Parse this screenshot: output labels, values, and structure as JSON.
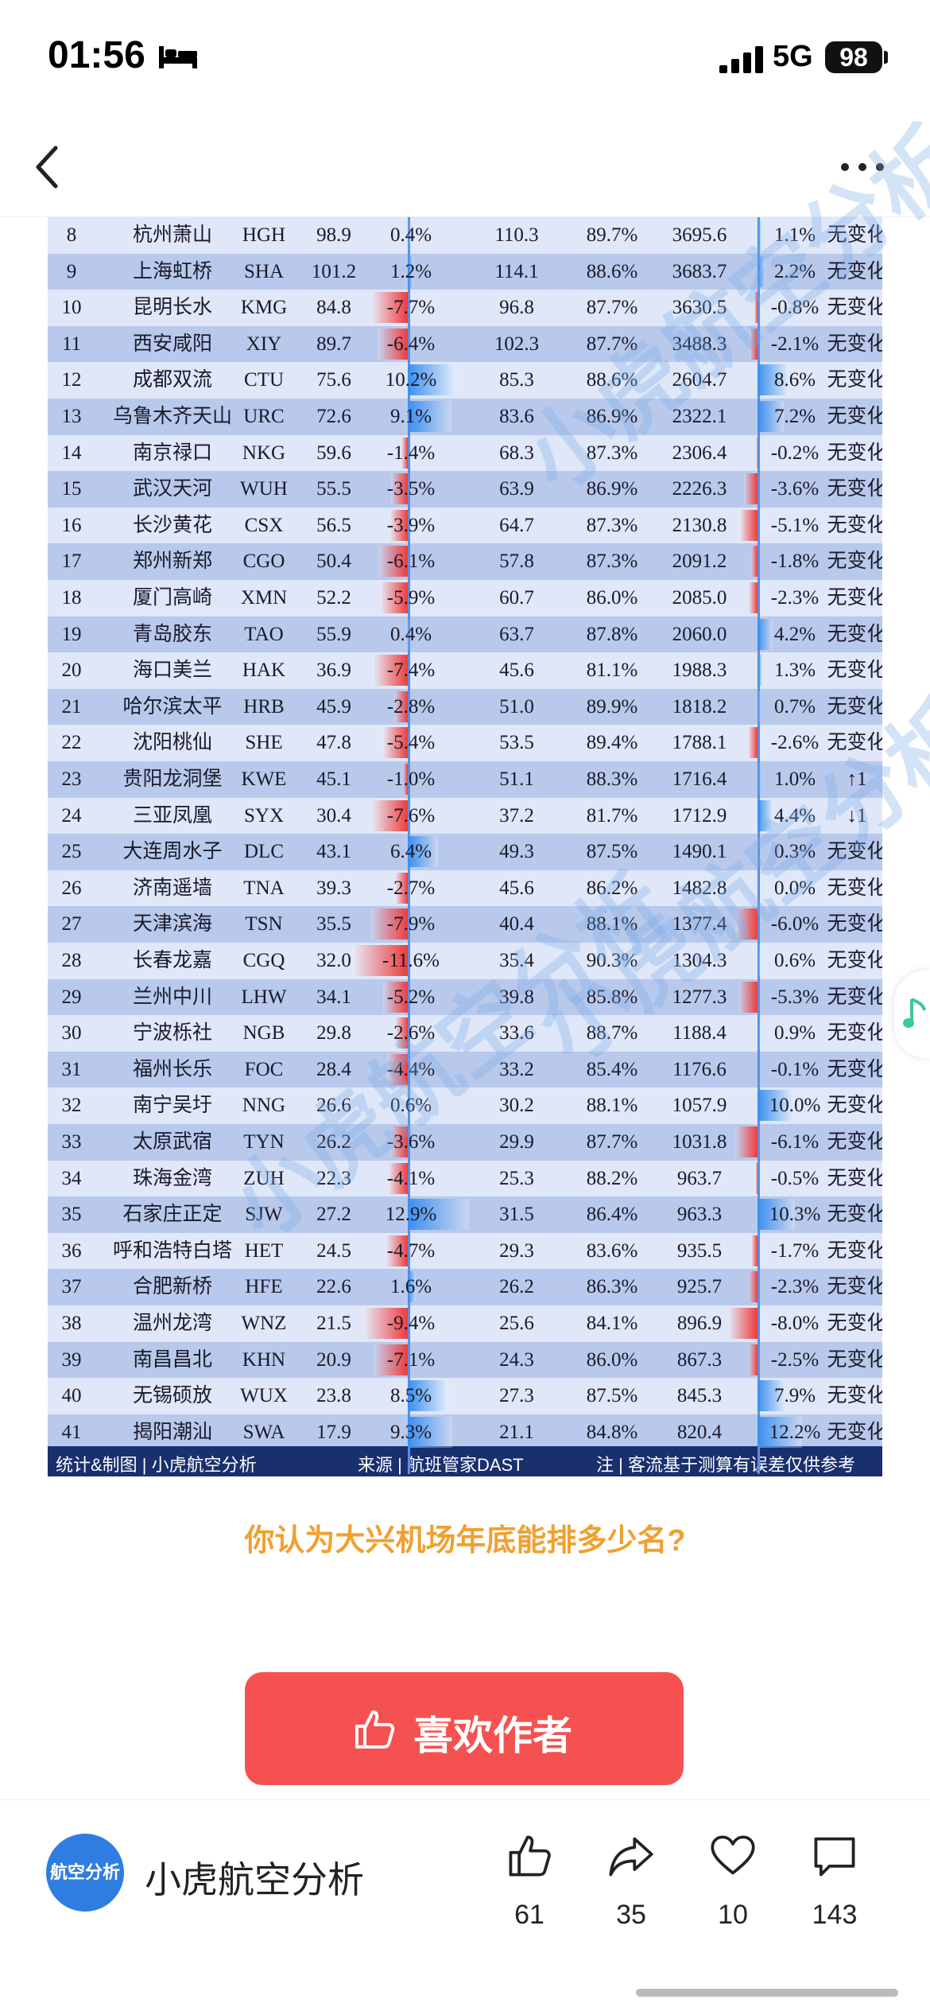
{
  "status_bar": {
    "time": "01:56",
    "network": "5G",
    "battery": "98"
  },
  "nav": {
    "back_icon": "chevron-left-icon",
    "more_icon": "more-horizontal-icon"
  },
  "table": {
    "rows": [
      {
        "rank": "8",
        "name": "杭州萧山",
        "code": "HGH",
        "pax": "98.9",
        "growth1": "0.4%",
        "seat": "110.3",
        "load": "89.7%",
        "flights": "3695.6",
        "growth2": "1.1%",
        "change": "无变化"
      },
      {
        "rank": "9",
        "name": "上海虹桥",
        "code": "SHA",
        "pax": "101.2",
        "growth1": "1.2%",
        "seat": "114.1",
        "load": "88.6%",
        "flights": "3683.7",
        "growth2": "2.2%",
        "change": "无变化"
      },
      {
        "rank": "10",
        "name": "昆明长水",
        "code": "KMG",
        "pax": "84.8",
        "growth1": "-7.7%",
        "seat": "96.8",
        "load": "87.7%",
        "flights": "3630.5",
        "growth2": "-0.8%",
        "change": "无变化"
      },
      {
        "rank": "11",
        "name": "西安咸阳",
        "code": "XIY",
        "pax": "89.7",
        "growth1": "-6.4%",
        "seat": "102.3",
        "load": "87.7%",
        "flights": "3488.3",
        "growth2": "-2.1%",
        "change": "无变化"
      },
      {
        "rank": "12",
        "name": "成都双流",
        "code": "CTU",
        "pax": "75.6",
        "growth1": "10.2%",
        "seat": "85.3",
        "load": "88.6%",
        "flights": "2604.7",
        "growth2": "8.6%",
        "change": "无变化"
      },
      {
        "rank": "13",
        "name": "乌鲁木齐天山",
        "code": "URC",
        "pax": "72.6",
        "growth1": "9.1%",
        "seat": "83.6",
        "load": "86.9%",
        "flights": "2322.1",
        "growth2": "7.2%",
        "change": "无变化"
      },
      {
        "rank": "14",
        "name": "南京禄口",
        "code": "NKG",
        "pax": "59.6",
        "growth1": "-1.4%",
        "seat": "68.3",
        "load": "87.3%",
        "flights": "2306.4",
        "growth2": "-0.2%",
        "change": "无变化"
      },
      {
        "rank": "15",
        "name": "武汉天河",
        "code": "WUH",
        "pax": "55.5",
        "growth1": "-3.5%",
        "seat": "63.9",
        "load": "86.9%",
        "flights": "2226.3",
        "growth2": "-3.6%",
        "change": "无变化"
      },
      {
        "rank": "16",
        "name": "长沙黄花",
        "code": "CSX",
        "pax": "56.5",
        "growth1": "-3.9%",
        "seat": "64.7",
        "load": "87.3%",
        "flights": "2130.8",
        "growth2": "-5.1%",
        "change": "无变化"
      },
      {
        "rank": "17",
        "name": "郑州新郑",
        "code": "CGO",
        "pax": "50.4",
        "growth1": "-6.1%",
        "seat": "57.8",
        "load": "87.3%",
        "flights": "2091.2",
        "growth2": "-1.8%",
        "change": "无变化"
      },
      {
        "rank": "18",
        "name": "厦门高崎",
        "code": "XMN",
        "pax": "52.2",
        "growth1": "-5.9%",
        "seat": "60.7",
        "load": "86.0%",
        "flights": "2085.0",
        "growth2": "-2.3%",
        "change": "无变化"
      },
      {
        "rank": "19",
        "name": "青岛胶东",
        "code": "TAO",
        "pax": "55.9",
        "growth1": "0.4%",
        "seat": "63.7",
        "load": "87.8%",
        "flights": "2060.0",
        "growth2": "4.2%",
        "change": "无变化"
      },
      {
        "rank": "20",
        "name": "海口美兰",
        "code": "HAK",
        "pax": "36.9",
        "growth1": "-7.4%",
        "seat": "45.6",
        "load": "81.1%",
        "flights": "1988.3",
        "growth2": "1.3%",
        "change": "无变化"
      },
      {
        "rank": "21",
        "name": "哈尔滨太平",
        "code": "HRB",
        "pax": "45.9",
        "growth1": "-2.8%",
        "seat": "51.0",
        "load": "89.9%",
        "flights": "1818.2",
        "growth2": "0.7%",
        "change": "无变化"
      },
      {
        "rank": "22",
        "name": "沈阳桃仙",
        "code": "SHE",
        "pax": "47.8",
        "growth1": "-5.4%",
        "seat": "53.5",
        "load": "89.4%",
        "flights": "1788.1",
        "growth2": "-2.6%",
        "change": "无变化"
      },
      {
        "rank": "23",
        "name": "贵阳龙洞堡",
        "code": "KWE",
        "pax": "45.1",
        "growth1": "-1.0%",
        "seat": "51.1",
        "load": "88.3%",
        "flights": "1716.4",
        "growth2": "1.0%",
        "change": "↑1"
      },
      {
        "rank": "24",
        "name": "三亚凤凰",
        "code": "SYX",
        "pax": "30.4",
        "growth1": "-7.6%",
        "seat": "37.2",
        "load": "81.7%",
        "flights": "1712.9",
        "growth2": "4.4%",
        "change": "↓1"
      },
      {
        "rank": "25",
        "name": "大连周水子",
        "code": "DLC",
        "pax": "43.1",
        "growth1": "6.4%",
        "seat": "49.3",
        "load": "87.5%",
        "flights": "1490.1",
        "growth2": "0.3%",
        "change": "无变化"
      },
      {
        "rank": "26",
        "name": "济南遥墙",
        "code": "TNA",
        "pax": "39.3",
        "growth1": "-2.7%",
        "seat": "45.6",
        "load": "86.2%",
        "flights": "1482.8",
        "growth2": "0.0%",
        "change": "无变化"
      },
      {
        "rank": "27",
        "name": "天津滨海",
        "code": "TSN",
        "pax": "35.5",
        "growth1": "-7.9%",
        "seat": "40.4",
        "load": "88.1%",
        "flights": "1377.4",
        "growth2": "-6.0%",
        "change": "无变化"
      },
      {
        "rank": "28",
        "name": "长春龙嘉",
        "code": "CGQ",
        "pax": "32.0",
        "growth1": "-11.6%",
        "seat": "35.4",
        "load": "90.3%",
        "flights": "1304.3",
        "growth2": "0.6%",
        "change": "无变化"
      },
      {
        "rank": "29",
        "name": "兰州中川",
        "code": "LHW",
        "pax": "34.1",
        "growth1": "-5.2%",
        "seat": "39.8",
        "load": "85.8%",
        "flights": "1277.3",
        "growth2": "-5.3%",
        "change": "无变化"
      },
      {
        "rank": "30",
        "name": "宁波栎社",
        "code": "NGB",
        "pax": "29.8",
        "growth1": "-2.6%",
        "seat": "33.6",
        "load": "88.7%",
        "flights": "1188.4",
        "growth2": "0.9%",
        "change": "无变化"
      },
      {
        "rank": "31",
        "name": "福州长乐",
        "code": "FOC",
        "pax": "28.4",
        "growth1": "-4.4%",
        "seat": "33.2",
        "load": "85.4%",
        "flights": "1176.6",
        "growth2": "-0.1%",
        "change": "无变化"
      },
      {
        "rank": "32",
        "name": "南宁吴圩",
        "code": "NNG",
        "pax": "26.6",
        "growth1": "0.6%",
        "seat": "30.2",
        "load": "88.1%",
        "flights": "1057.9",
        "growth2": "10.0%",
        "change": "无变化"
      },
      {
        "rank": "33",
        "name": "太原武宿",
        "code": "TYN",
        "pax": "26.2",
        "growth1": "-3.6%",
        "seat": "29.9",
        "load": "87.7%",
        "flights": "1031.8",
        "growth2": "-6.1%",
        "change": "无变化"
      },
      {
        "rank": "34",
        "name": "珠海金湾",
        "code": "ZUH",
        "pax": "22.3",
        "growth1": "-4.1%",
        "seat": "25.3",
        "load": "88.2%",
        "flights": "963.7",
        "growth2": "-0.5%",
        "change": "无变化"
      },
      {
        "rank": "35",
        "name": "石家庄正定",
        "code": "SJW",
        "pax": "27.2",
        "growth1": "12.9%",
        "seat": "31.5",
        "load": "86.4%",
        "flights": "963.3",
        "growth2": "10.3%",
        "change": "无变化"
      },
      {
        "rank": "36",
        "name": "呼和浩特白塔",
        "code": "HET",
        "pax": "24.5",
        "growth1": "-4.7%",
        "seat": "29.3",
        "load": "83.6%",
        "flights": "935.5",
        "growth2": "-1.7%",
        "change": "无变化"
      },
      {
        "rank": "37",
        "name": "合肥新桥",
        "code": "HFE",
        "pax": "22.6",
        "growth1": "1.6%",
        "seat": "26.2",
        "load": "86.3%",
        "flights": "925.7",
        "growth2": "-2.3%",
        "change": "无变化"
      },
      {
        "rank": "38",
        "name": "温州龙湾",
        "code": "WNZ",
        "pax": "21.5",
        "growth1": "-9.4%",
        "seat": "25.6",
        "load": "84.1%",
        "flights": "896.9",
        "growth2": "-8.0%",
        "change": "无变化"
      },
      {
        "rank": "39",
        "name": "南昌昌北",
        "code": "KHN",
        "pax": "20.9",
        "growth1": "-7.1%",
        "seat": "24.3",
        "load": "86.0%",
        "flights": "867.3",
        "growth2": "-2.5%",
        "change": "无变化"
      },
      {
        "rank": "40",
        "name": "无锡硕放",
        "code": "WUX",
        "pax": "23.8",
        "growth1": "8.5%",
        "seat": "27.3",
        "load": "87.5%",
        "flights": "845.3",
        "growth2": "7.9%",
        "change": "无变化"
      },
      {
        "rank": "41",
        "name": "揭阳潮汕",
        "code": "SWA",
        "pax": "17.9",
        "growth1": "9.3%",
        "seat": "21.1",
        "load": "84.8%",
        "flights": "820.4",
        "growth2": "12.2%",
        "change": "无变化"
      }
    ],
    "footer": {
      "stats": "统计&制图 | 小虎航空分析",
      "source": "来源 | 航班管家DAST",
      "note": "注 | 客流基于测算有误差仅供参考"
    },
    "watermark": "小虎航空分析"
  },
  "question": "你认为大兴机场年底能排多少名?",
  "like_button": {
    "label": "喜欢作者",
    "icon": "thumbs-up-icon"
  },
  "bottom_bar": {
    "avatar_text": "航空分析",
    "author_name": "小虎航空分析",
    "actions": [
      {
        "icon": "thumbs-up-icon",
        "count": "61"
      },
      {
        "icon": "share-icon",
        "count": "35"
      },
      {
        "icon": "heart-icon",
        "count": "10"
      },
      {
        "icon": "comment-icon",
        "count": "143"
      }
    ]
  },
  "colors": {
    "accent": "#f65151",
    "question": "#f0a030",
    "table_footer": "#1a2f6e",
    "row_light": "#dfe7f8",
    "row_dark": "#b8c9ec"
  }
}
